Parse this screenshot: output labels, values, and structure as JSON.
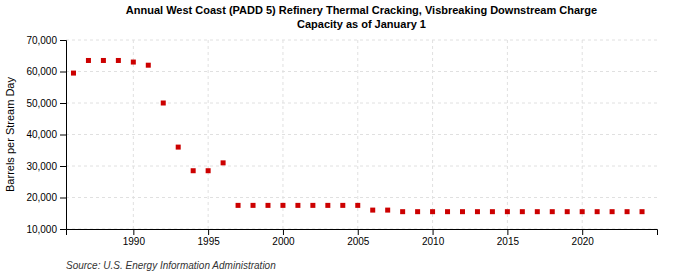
{
  "chart_data": {
    "type": "scatter",
    "title": "Annual West Coast (PADD 5) Refinery Thermal Cracking, Visbreaking Downstream Charge\nCapacity as of January 1",
    "ylabel": "Barrels per Stream Day",
    "annotations": [
      "Source: U.S. Energy Information Administration"
    ],
    "x": [
      1986,
      1987,
      1988,
      1989,
      1990,
      1991,
      1992,
      1993,
      1994,
      1995,
      1996,
      1997,
      1998,
      1999,
      2000,
      2001,
      2002,
      2003,
      2004,
      2005,
      2006,
      2007,
      2008,
      2009,
      2010,
      2011,
      2012,
      2013,
      2014,
      2015,
      2016,
      2017,
      2018,
      2019,
      2020,
      2021,
      2022,
      2023,
      2024
    ],
    "values": [
      59500,
      63500,
      63500,
      63500,
      63000,
      62000,
      50000,
      36000,
      28500,
      28500,
      31000,
      17500,
      17500,
      17500,
      17500,
      17500,
      17500,
      17500,
      17500,
      17500,
      16000,
      16000,
      15500,
      15500,
      15500,
      15500,
      15500,
      15500,
      15500,
      15500,
      15500,
      15500,
      15500,
      15500,
      15500,
      15500,
      15500,
      15500,
      15500
    ],
    "color": "#cc0000",
    "marker": "square",
    "xlim": [
      1985.5,
      2025
    ],
    "xticks": [
      1990,
      1995,
      2000,
      2005,
      2010,
      2015,
      2020
    ],
    "ylim": [
      10000,
      70000
    ],
    "yticks": [
      {
        "value": 10000,
        "label": "10,000"
      },
      {
        "value": 20000,
        "label": "20,000"
      },
      {
        "value": 30000,
        "label": "30,000"
      },
      {
        "value": 40000,
        "label": "40,000"
      },
      {
        "value": 50000,
        "label": "50,000"
      },
      {
        "value": 60000,
        "label": "60,000"
      },
      {
        "value": 70000,
        "label": "70,000"
      }
    ],
    "grid": true
  }
}
